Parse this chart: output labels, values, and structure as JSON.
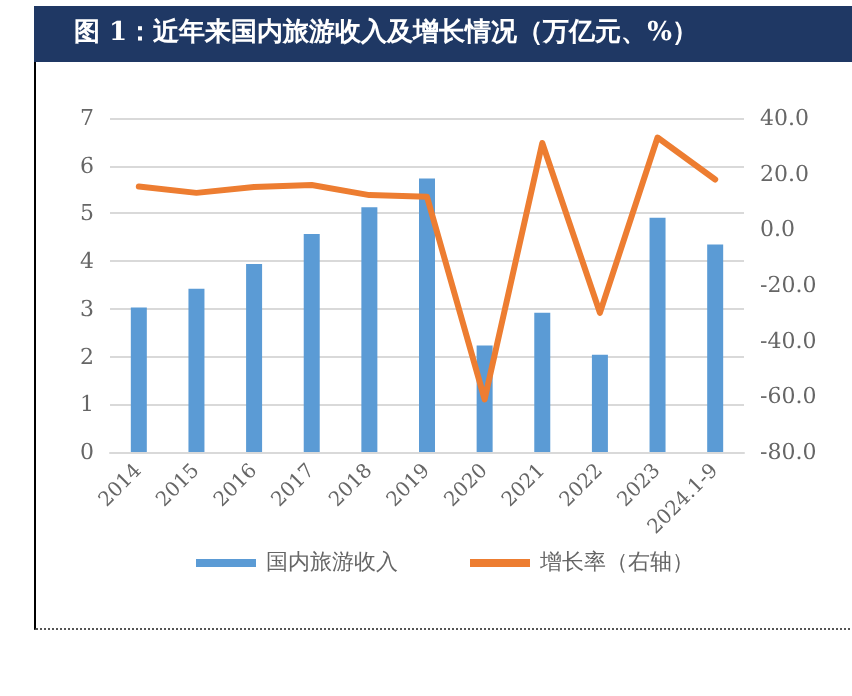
{
  "chart_data": {
    "type": "bar",
    "title": "图 1：近年来国内旅游收入及增长情况（万亿元、%）",
    "categories": [
      "2014",
      "2015",
      "2016",
      "2017",
      "2018",
      "2019",
      "2020",
      "2021",
      "2022",
      "2023",
      "2024.1-9"
    ],
    "series": [
      {
        "name": "国内旅游收入",
        "color": "#5b9bd5",
        "values": [
          3.03,
          3.42,
          3.94,
          4.57,
          5.13,
          5.73,
          2.23,
          2.92,
          2.04,
          4.91,
          4.35
        ]
      },
      {
        "name": "增长率（右轴）",
        "type": "line",
        "axis": "y2",
        "color": "#ed7d31",
        "values": [
          15.4,
          13.1,
          15.2,
          15.9,
          12.3,
          11.7,
          -61.1,
          31.0,
          -30.0,
          33.0,
          17.9
        ]
      }
    ],
    "ylim": [
      0,
      7
    ],
    "yticks": [
      0,
      1,
      2,
      3,
      4,
      5,
      6,
      7
    ],
    "y2lim": [
      -80,
      40
    ],
    "y2ticks": [
      {
        "value": -80,
        "label": "-80.0"
      },
      {
        "value": -60,
        "label": "-60.0"
      },
      {
        "value": -40,
        "label": "-40.0"
      },
      {
        "value": -20,
        "label": "-20.0"
      },
      {
        "value": 0,
        "label": "0.0"
      },
      {
        "value": 20,
        "label": "20.0"
      },
      {
        "value": 40,
        "label": "40.0"
      }
    ],
    "grid": "y",
    "legend": "bottom",
    "marker": "none"
  }
}
